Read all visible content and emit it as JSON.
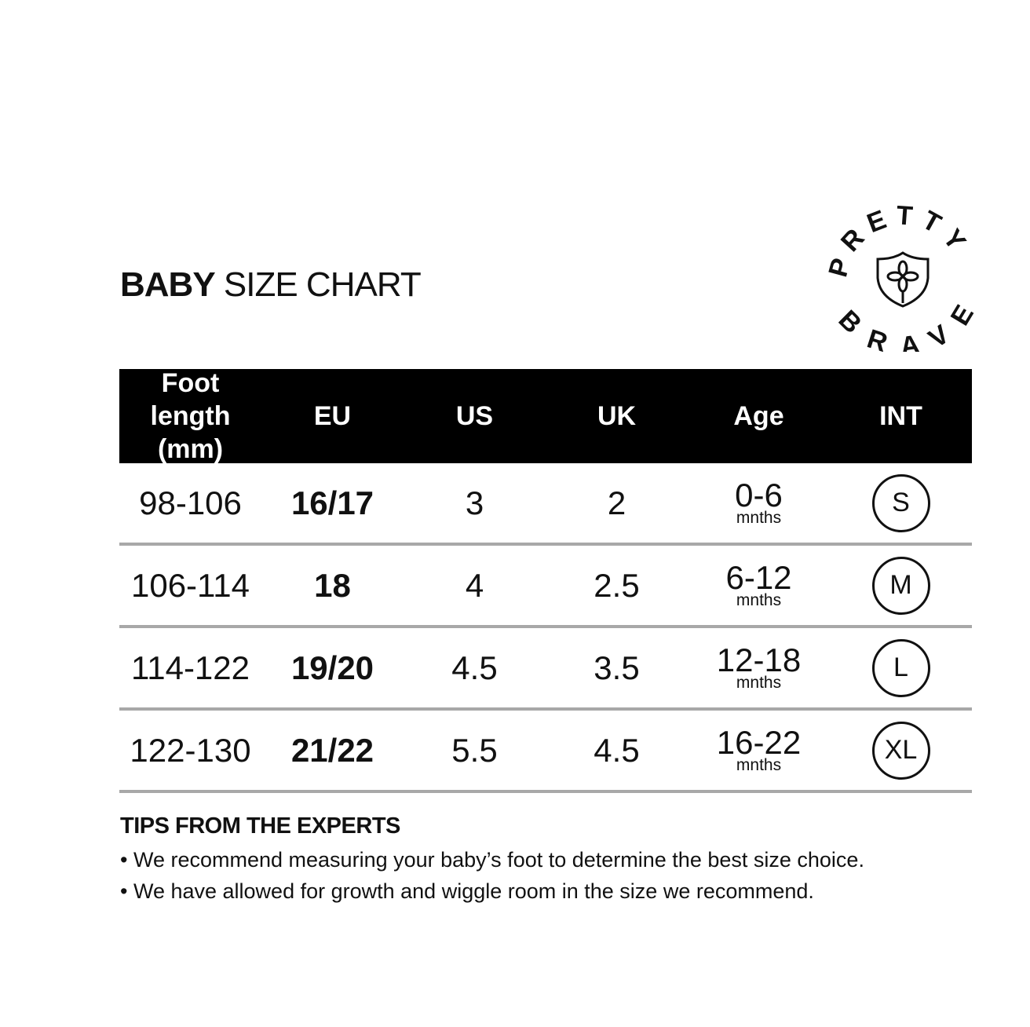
{
  "title": {
    "bold": "BABY",
    "rest": " SIZE CHART"
  },
  "logo": {
    "text": "PRETTY BRAVE",
    "icon": "shield-flower-icon"
  },
  "table": {
    "headers": [
      {
        "line1": "Foot length",
        "line2": "(mm)"
      },
      {
        "line1": "EU"
      },
      {
        "line1": "US"
      },
      {
        "line1": "UK"
      },
      {
        "line1": "Age"
      },
      {
        "line1": "INT"
      }
    ],
    "rows": [
      {
        "foot": "98-106",
        "eu": "16/17",
        "us": "3",
        "uk": "2",
        "age": "0-6",
        "age_unit": "mnths",
        "int": "S"
      },
      {
        "foot": "106-114",
        "eu": "18",
        "us": "4",
        "uk": "2.5",
        "age": "6-12",
        "age_unit": "mnths",
        "int": "M"
      },
      {
        "foot": "114-122",
        "eu": "19/20",
        "us": "4.5",
        "uk": "3.5",
        "age": "12-18",
        "age_unit": "mnths",
        "int": "L"
      },
      {
        "foot": "122-130",
        "eu": "21/22",
        "us": "5.5",
        "uk": "4.5",
        "age": "16-22",
        "age_unit": "mnths",
        "int": "XL"
      }
    ]
  },
  "tips": {
    "heading": "TIPS FROM THE EXPERTS",
    "items": [
      "We recommend measuring your baby’s foot to determine the best size choice.",
      "We have allowed for growth and wiggle room in the size we recommend."
    ]
  },
  "colors": {
    "header_bg": "#000000",
    "divider": "#a8a8a8"
  }
}
